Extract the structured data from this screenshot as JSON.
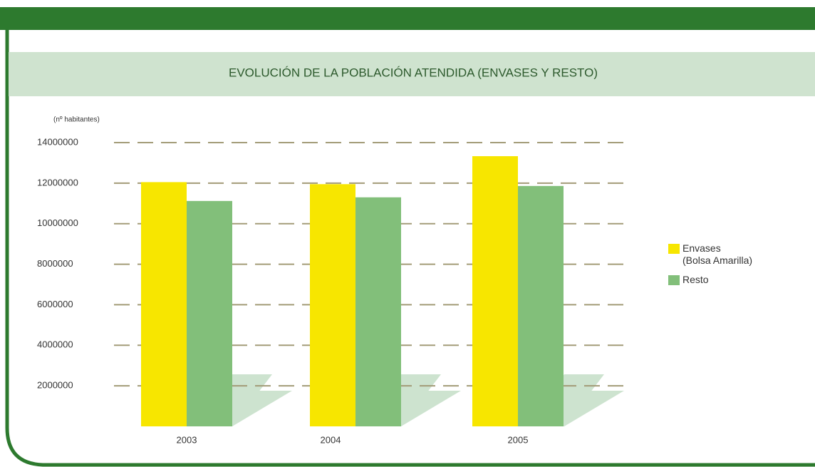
{
  "chart_data": {
    "type": "bar",
    "title": "EVOLUCIÓN DE LA POBLACIÓN ATENDIDA (ENVASES Y RESTO)",
    "y_axis_label": "(nº habitantes)",
    "categories": [
      "2003",
      "2004",
      "2005"
    ],
    "series": [
      {
        "name": "Envases\n(Bolsa Amarilla)",
        "color": "#f7e600",
        "values": [
          12050000,
          11950000,
          13330000
        ]
      },
      {
        "name": "Resto",
        "color": "#82bf7a",
        "values": [
          11120000,
          11300000,
          11860000
        ]
      }
    ],
    "ylim": [
      0,
      14000000
    ],
    "yticks": [
      2000000,
      4000000,
      6000000,
      8000000,
      10000000,
      12000000,
      14000000
    ],
    "grid": true,
    "legend": "right"
  }
}
